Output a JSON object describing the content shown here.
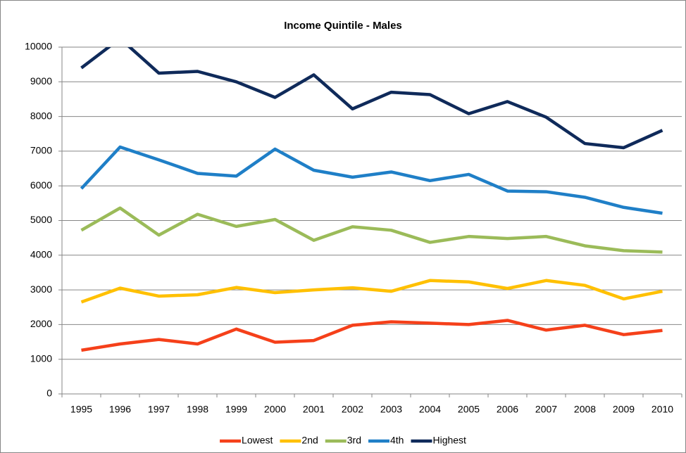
{
  "chart_data": {
    "type": "line",
    "title": "Income Quintile - Males",
    "categories": [
      "1995",
      "1996",
      "1997",
      "1998",
      "1999",
      "2000",
      "2001",
      "2002",
      "2003",
      "2004",
      "2005",
      "2006",
      "2007",
      "2008",
      "2009",
      "2010"
    ],
    "series": [
      {
        "name": "Lowest",
        "color": "#f5401a",
        "values": [
          1260,
          1440,
          1570,
          1440,
          1870,
          1490,
          1540,
          1980,
          2080,
          2040,
          2000,
          2120,
          1840,
          1980,
          1710,
          1830
        ]
      },
      {
        "name": "2nd",
        "color": "#ffc000",
        "values": [
          2650,
          3050,
          2820,
          2860,
          3070,
          2920,
          3000,
          3060,
          2960,
          3270,
          3230,
          3040,
          3270,
          3130,
          2740,
          2960
        ]
      },
      {
        "name": "3rd",
        "color": "#9bbb59",
        "values": [
          4720,
          5360,
          4580,
          5180,
          4830,
          5030,
          4430,
          4820,
          4720,
          4370,
          4540,
          4480,
          4540,
          4270,
          4130,
          4090
        ]
      },
      {
        "name": "4th",
        "color": "#1f7fc7",
        "values": [
          5920,
          7120,
          6750,
          6360,
          6280,
          7060,
          6450,
          6250,
          6400,
          6150,
          6330,
          5850,
          5830,
          5670,
          5380,
          5210
        ]
      },
      {
        "name": "Highest",
        "color": "#0f2a5a",
        "values": [
          9400,
          10250,
          9250,
          9300,
          9000,
          8550,
          9200,
          8220,
          8700,
          8630,
          8080,
          8430,
          7980,
          7220,
          7100,
          7600
        ]
      }
    ],
    "ylim": [
      0,
      10000
    ],
    "yticks": [
      0,
      1000,
      2000,
      3000,
      4000,
      5000,
      6000,
      7000,
      8000,
      9000,
      10000
    ],
    "grid": true,
    "legend": "bottom"
  }
}
